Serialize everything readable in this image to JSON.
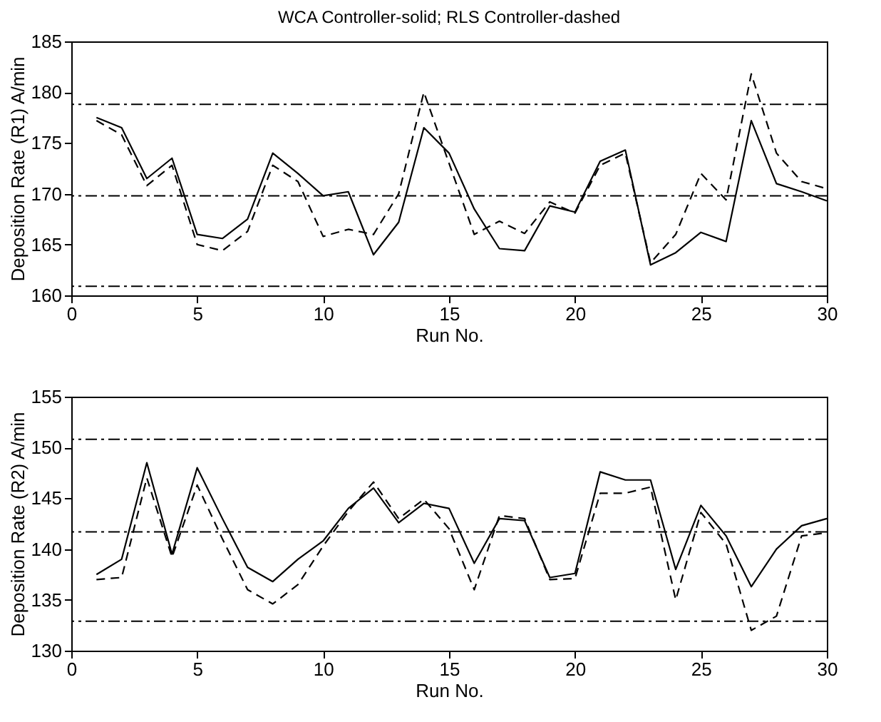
{
  "chart_data": [
    {
      "type": "line",
      "title": "WCA Controller-solid; RLS Controller-dashed",
      "xlabel": "Run No.",
      "ylabel": "Deposition Rate (R1) A/min",
      "x": [
        1,
        2,
        3,
        4,
        5,
        6,
        7,
        8,
        9,
        10,
        11,
        12,
        13,
        14,
        15,
        16,
        17,
        18,
        19,
        20,
        21,
        22,
        23,
        24,
        25,
        26,
        27,
        28,
        29,
        30
      ],
      "series": [
        {
          "color": "#000000",
          "line_style": "solid",
          "values": [
            177.5,
            176.5,
            171.5,
            173.5,
            166,
            165.6,
            167.5,
            174,
            172,
            169.8,
            170.2,
            164,
            167.2,
            176.5,
            174,
            168.5,
            164.6,
            164.4,
            168.8,
            168.2,
            173.2,
            174.3,
            163,
            164.2,
            166.2,
            165.3,
            177.2,
            171,
            170.2,
            169.3
          ]
        },
        {
          "color": "#000000",
          "line_style": "dashed",
          "values": [
            177.2,
            175.8,
            170.8,
            172.8,
            165,
            164.4,
            166.3,
            172.8,
            171.2,
            165.8,
            166.5,
            166,
            170,
            180,
            173,
            166,
            167.3,
            166.1,
            169.2,
            168.1,
            172.8,
            174,
            163.2,
            166,
            172,
            169.4,
            181.8,
            174,
            171.2,
            170.5
          ]
        }
      ],
      "ref_lines": [
        {
          "axis": "y",
          "value": 178.8,
          "color": "#000000",
          "line_style": "dashdot"
        },
        {
          "axis": "y",
          "value": 169.8,
          "color": "#000000",
          "line_style": "dashdot"
        },
        {
          "axis": "y",
          "value": 160.9,
          "color": "#000000",
          "line_style": "dashdot"
        }
      ],
      "xlim": [
        0,
        30
      ],
      "xticks": [
        0,
        5,
        10,
        15,
        20,
        25,
        30
      ],
      "ylim": [
        160,
        185
      ],
      "yticks": [
        160,
        165,
        170,
        175,
        180,
        185
      ],
      "grid": false,
      "legend": false,
      "marker": "none"
    },
    {
      "type": "line",
      "xlabel": "Run No.",
      "ylabel": "Deposition Rate (R2) A/min",
      "x": [
        1,
        2,
        3,
        4,
        5,
        6,
        7,
        8,
        9,
        10,
        11,
        12,
        13,
        14,
        15,
        16,
        17,
        18,
        19,
        20,
        21,
        22,
        23,
        24,
        25,
        26,
        27,
        28,
        29,
        30
      ],
      "series": [
        {
          "color": "#000000",
          "line_style": "solid",
          "values": [
            137.5,
            139,
            148.5,
            139.5,
            148,
            143,
            138.2,
            136.8,
            139,
            140.8,
            144,
            146,
            142.6,
            144.5,
            144,
            138.6,
            143,
            142.8,
            137.2,
            137.6,
            147.6,
            146.8,
            146.8,
            138,
            144.3,
            141.3,
            136.3,
            140,
            142.3,
            143
          ]
        },
        {
          "color": "#000000",
          "line_style": "dashed",
          "values": [
            137,
            137.2,
            147,
            139.2,
            146.3,
            141,
            136,
            134.6,
            136.5,
            140.3,
            143.7,
            146.6,
            143,
            144.9,
            142,
            136,
            143.3,
            143,
            137,
            137.1,
            145.5,
            145.5,
            146.1,
            135,
            143.6,
            140.5,
            132,
            133.4,
            141.3,
            141.6
          ]
        }
      ],
      "ref_lines": [
        {
          "axis": "y",
          "value": 150.8,
          "color": "#000000",
          "line_style": "dashdot"
        },
        {
          "axis": "y",
          "value": 141.7,
          "color": "#000000",
          "line_style": "dashdot"
        },
        {
          "axis": "y",
          "value": 132.9,
          "color": "#000000",
          "line_style": "dashdot"
        }
      ],
      "xlim": [
        0,
        30
      ],
      "xticks": [
        0,
        5,
        10,
        15,
        20,
        25,
        30
      ],
      "ylim": [
        130,
        155
      ],
      "yticks": [
        130,
        135,
        140,
        145,
        150,
        155
      ],
      "grid": false,
      "legend": false,
      "marker": "none"
    }
  ]
}
